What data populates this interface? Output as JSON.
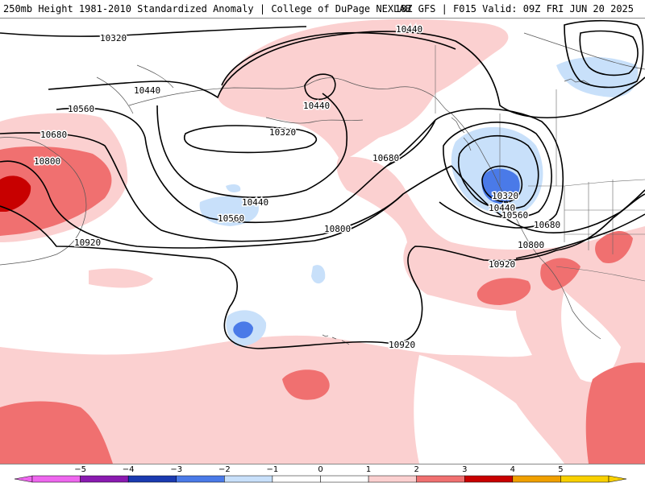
{
  "header": {
    "title": "250mb Height 1981-2010 Standardized Anomaly | College of DuPage NEXLAB",
    "run_info": "18Z GFS | F015 Valid: 09Z FRI JUN 20 2025"
  },
  "colors": {
    "anom_neg5": "#ee66ee",
    "anom_neg4": "#8a1ab0",
    "anom_neg3": "#1a3ab0",
    "anom_neg2": "#4a7ae8",
    "anom_neg1": "#c8e0fa",
    "anom_0": "#ffffff",
    "anom_pos1": "#fbd0d0",
    "anom_pos2": "#f07070",
    "anom_pos3": "#c80000",
    "anom_pos4": "#f0a000",
    "anom_pos5": "#f8d000"
  },
  "contour_labels": [
    "10320",
    "10440",
    "10560",
    "10680",
    "10800",
    "10920",
    "10440",
    "10320",
    "10440",
    "10560",
    "10800",
    "10920",
    "10680",
    "10320",
    "10440",
    "10560",
    "10680",
    "10800",
    "10920"
  ],
  "colorbar": {
    "ticks": [
      "−5",
      "−4",
      "−3",
      "−2",
      "−1",
      "0",
      "1",
      "2",
      "3",
      "4",
      "5"
    ]
  }
}
